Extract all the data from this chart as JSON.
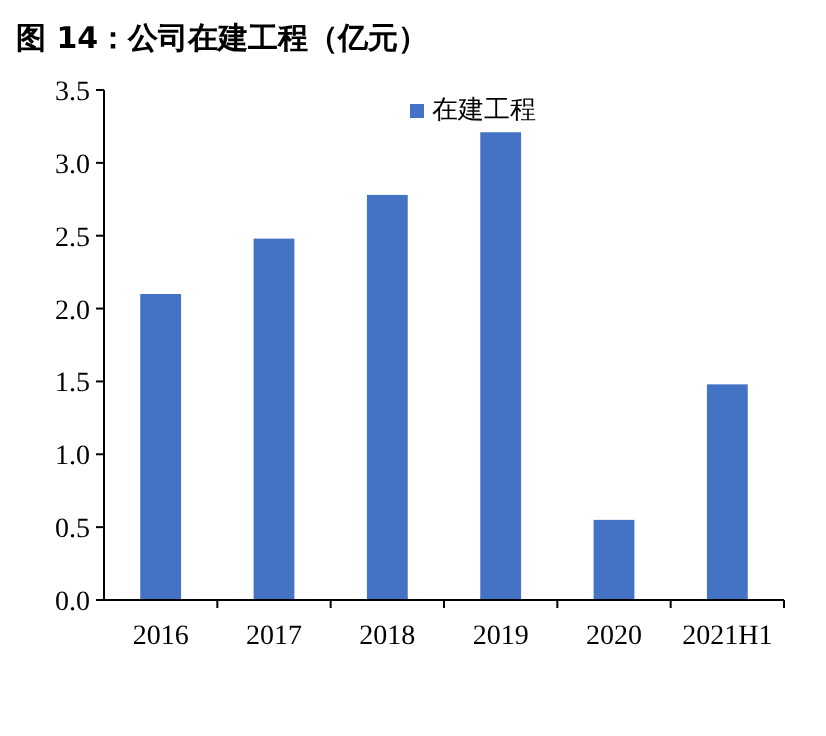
{
  "chart_data": {
    "type": "bar",
    "title": "图 14：公司在建工程（亿元）",
    "categories": [
      "2016",
      "2017",
      "2018",
      "2019",
      "2020",
      "2021H1"
    ],
    "series": [
      {
        "name": "在建工程",
        "color": "#4472c4",
        "values": [
          2.1,
          2.48,
          2.78,
          3.21,
          0.55,
          1.48
        ]
      }
    ],
    "ylim": [
      0,
      3.5
    ],
    "yticks": [
      {
        "value": 0,
        "label": "0.0"
      },
      {
        "value": 0.5,
        "label": "0.5"
      },
      {
        "value": 1,
        "label": "1.0"
      },
      {
        "value": 1.5,
        "label": "1.5"
      },
      {
        "value": 2,
        "label": "2.0"
      },
      {
        "value": 2.5,
        "label": "2.5"
      },
      {
        "value": 3,
        "label": "3.0"
      },
      {
        "value": 3.5,
        "label": "3.5"
      }
    ],
    "legend": "top right"
  }
}
